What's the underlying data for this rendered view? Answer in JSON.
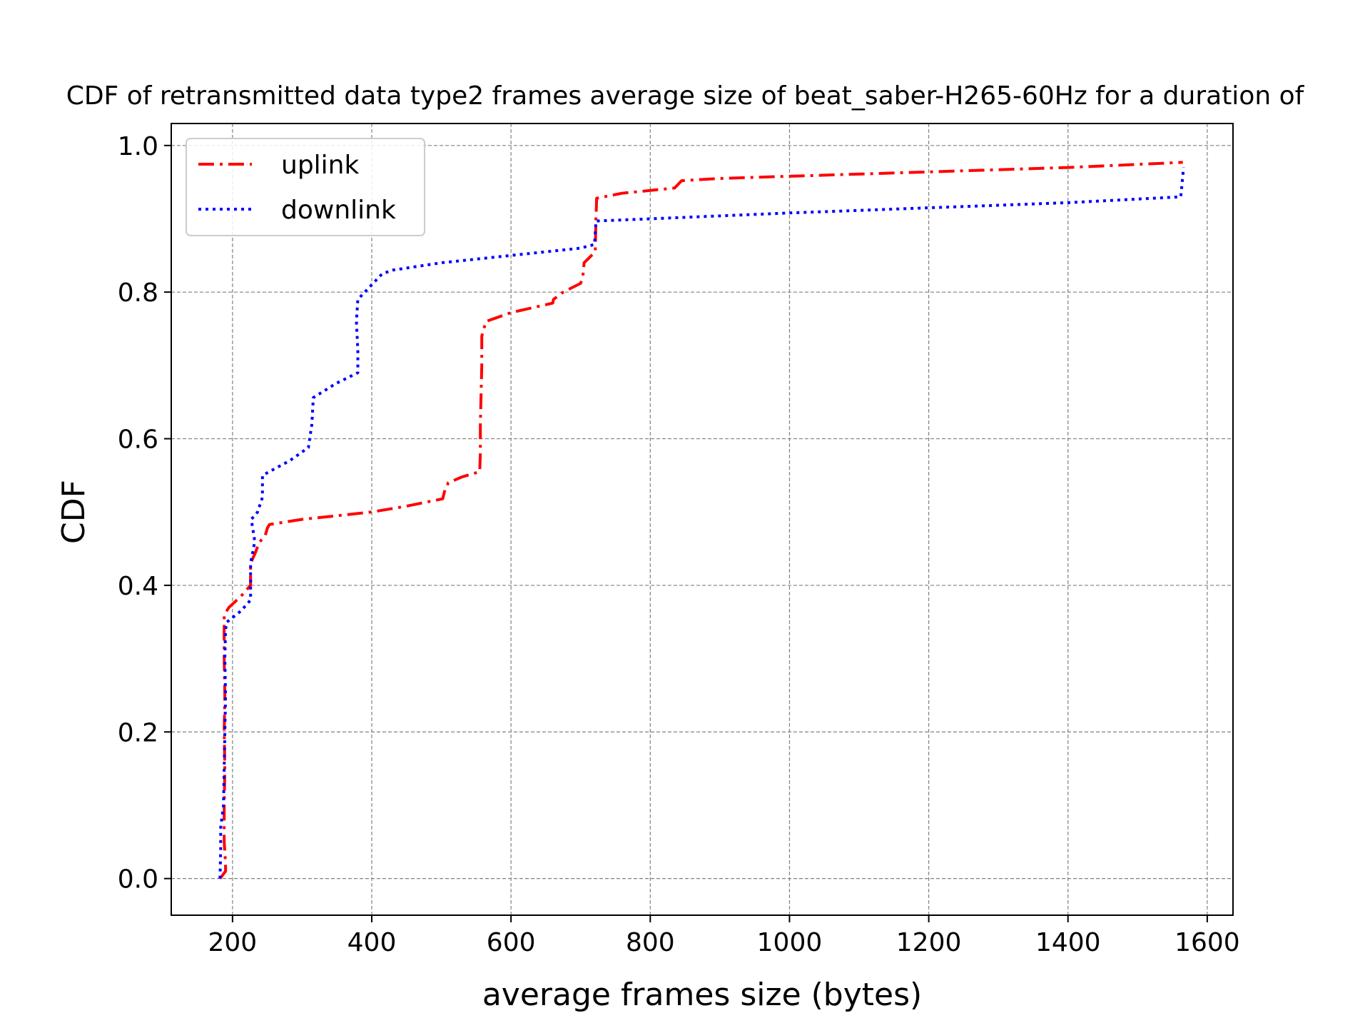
{
  "chart_data": {
    "type": "line",
    "title": "CDF of retransmitted data type2 frames average size of beat_saber-H265-60Hz for a duration of",
    "xlabel": "average frames size (bytes)",
    "ylabel": "CDF",
    "xlim": [
      112,
      1637
    ],
    "ylim": [
      -0.05,
      1.03
    ],
    "xticks": [
      200,
      400,
      600,
      800,
      1000,
      1200,
      1400,
      1600
    ],
    "xtick_labels": [
      "200",
      "400",
      "600",
      "800",
      "1000",
      "1200",
      "1400",
      "1600"
    ],
    "yticks": [
      0.0,
      0.2,
      0.4,
      0.6,
      0.8,
      1.0
    ],
    "ytick_labels": [
      "0.0",
      "0.2",
      "0.4",
      "0.6",
      "0.8",
      "1.0"
    ],
    "grid": true,
    "legend_position": "upper-left",
    "series": [
      {
        "name": "uplink",
        "color": "#ff0000",
        "style": "dashdot",
        "points": [
          [
            182,
            0.0
          ],
          [
            190,
            0.01
          ],
          [
            190,
            0.02
          ],
          [
            188,
            0.05
          ],
          [
            188,
            0.1
          ],
          [
            189,
            0.15
          ],
          [
            188,
            0.2
          ],
          [
            189,
            0.25
          ],
          [
            188,
            0.3
          ],
          [
            188,
            0.35
          ],
          [
            188,
            0.36
          ],
          [
            195,
            0.37
          ],
          [
            212,
            0.385
          ],
          [
            226,
            0.4
          ],
          [
            226,
            0.43
          ],
          [
            233,
            0.445
          ],
          [
            238,
            0.458
          ],
          [
            247,
            0.468
          ],
          [
            250,
            0.478
          ],
          [
            253,
            0.483
          ],
          [
            300,
            0.49
          ],
          [
            350,
            0.495
          ],
          [
            400,
            0.5
          ],
          [
            450,
            0.508
          ],
          [
            502,
            0.518
          ],
          [
            505,
            0.53
          ],
          [
            510,
            0.54
          ],
          [
            530,
            0.548
          ],
          [
            555,
            0.555
          ],
          [
            556,
            0.58
          ],
          [
            556,
            0.62
          ],
          [
            557,
            0.66
          ],
          [
            558,
            0.7
          ],
          [
            558,
            0.74
          ],
          [
            564,
            0.76
          ],
          [
            600,
            0.772
          ],
          [
            660,
            0.785
          ],
          [
            661,
            0.79
          ],
          [
            675,
            0.8
          ],
          [
            700,
            0.812
          ],
          [
            703,
            0.82
          ],
          [
            705,
            0.84
          ],
          [
            721,
            0.855
          ],
          [
            722,
            0.9
          ],
          [
            723,
            0.928
          ],
          [
            760,
            0.935
          ],
          [
            835,
            0.942
          ],
          [
            845,
            0.952
          ],
          [
            900,
            0.955
          ],
          [
            1000,
            0.958
          ],
          [
            1200,
            0.964
          ],
          [
            1400,
            0.97
          ],
          [
            1565,
            0.977
          ]
        ]
      },
      {
        "name": "downlink",
        "color": "#0000ff",
        "style": "dotted",
        "points": [
          [
            182,
            0.0
          ],
          [
            183,
            0.04
          ],
          [
            183,
            0.07
          ],
          [
            187,
            0.1
          ],
          [
            188,
            0.15
          ],
          [
            189,
            0.2
          ],
          [
            190,
            0.25
          ],
          [
            189,
            0.3
          ],
          [
            190,
            0.34
          ],
          [
            192,
            0.35
          ],
          [
            212,
            0.365
          ],
          [
            226,
            0.38
          ],
          [
            226,
            0.4
          ],
          [
            226,
            0.43
          ],
          [
            232,
            0.46
          ],
          [
            227,
            0.49
          ],
          [
            236,
            0.5
          ],
          [
            243,
            0.52
          ],
          [
            243,
            0.55
          ],
          [
            282,
            0.57
          ],
          [
            309,
            0.588
          ],
          [
            314,
            0.62
          ],
          [
            316,
            0.656
          ],
          [
            348,
            0.675
          ],
          [
            380,
            0.69
          ],
          [
            380,
            0.72
          ],
          [
            378,
            0.76
          ],
          [
            380,
            0.79
          ],
          [
            400,
            0.81
          ],
          [
            415,
            0.825
          ],
          [
            430,
            0.83
          ],
          [
            500,
            0.84
          ],
          [
            600,
            0.85
          ],
          [
            700,
            0.86
          ],
          [
            720,
            0.865
          ],
          [
            721,
            0.88
          ],
          [
            722,
            0.897
          ],
          [
            800,
            0.9
          ],
          [
            1000,
            0.908
          ],
          [
            1200,
            0.915
          ],
          [
            1400,
            0.922
          ],
          [
            1562,
            0.93
          ],
          [
            1564,
            0.95
          ],
          [
            1566,
            0.97
          ]
        ]
      }
    ]
  }
}
